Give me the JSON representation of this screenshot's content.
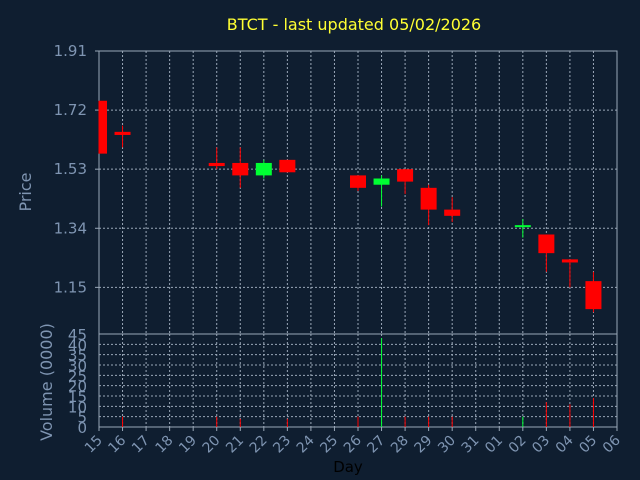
{
  "chart_data": {
    "type": "candlestick",
    "title": "BTCT - last updated 05/02/2026",
    "xlabel": "Day",
    "ylabel": "Price",
    "volume_label": "Volume (0000)",
    "x_ticks": [
      "15",
      "16",
      "17",
      "18",
      "19",
      "20",
      "21",
      "22",
      "23",
      "24",
      "25",
      "26",
      "27",
      "28",
      "29",
      "30",
      "31",
      "01",
      "02",
      "03",
      "04",
      "05",
      "06"
    ],
    "price_ticks": [
      "1.91",
      "1.72",
      "1.53",
      "1.34",
      "1.15"
    ],
    "price_range": [
      1.0,
      1.91
    ],
    "volume_ticks": [
      "45",
      "40",
      "35",
      "30",
      "25",
      "20",
      "15",
      "10",
      "5",
      "0"
    ],
    "volume_range": [
      0,
      45
    ],
    "grid": true,
    "colors": {
      "background": "#0f1e30",
      "grid": "#9aa8b8",
      "axis_text": "#7f95b2",
      "title": "#ffff33",
      "up": "#00ff33",
      "down": "#ff0000"
    },
    "candles": [
      {
        "day": "15",
        "open": 1.75,
        "high": 1.75,
        "low": 1.58,
        "close": 1.58,
        "volume": 0
      },
      {
        "day": "16",
        "open": 1.65,
        "high": 1.67,
        "low": 1.6,
        "close": 1.64,
        "volume": 5
      },
      {
        "day": "20",
        "open": 1.55,
        "high": 1.6,
        "low": 1.53,
        "close": 1.54,
        "volume": 5
      },
      {
        "day": "21",
        "open": 1.55,
        "high": 1.6,
        "low": 1.47,
        "close": 1.51,
        "volume": 4
      },
      {
        "day": "22",
        "open": 1.51,
        "high": 1.56,
        "low": 1.5,
        "close": 1.55,
        "volume": 0
      },
      {
        "day": "23",
        "open": 1.56,
        "high": 1.56,
        "low": 1.52,
        "close": 1.52,
        "volume": 4
      },
      {
        "day": "26",
        "open": 1.51,
        "high": 1.51,
        "low": 1.46,
        "close": 1.47,
        "volume": 5
      },
      {
        "day": "27",
        "open": 1.48,
        "high": 1.51,
        "low": 1.41,
        "close": 1.5,
        "volume": 43
      },
      {
        "day": "28",
        "open": 1.53,
        "high": 1.53,
        "low": 1.45,
        "close": 1.49,
        "volume": 5
      },
      {
        "day": "29",
        "open": 1.47,
        "high": 1.48,
        "low": 1.35,
        "close": 1.4,
        "volume": 5
      },
      {
        "day": "30",
        "open": 1.4,
        "high": 1.44,
        "low": 1.36,
        "close": 1.38,
        "volume": 5
      },
      {
        "day": "02",
        "open": 1.35,
        "high": 1.37,
        "low": 1.31,
        "close": 1.35,
        "volume": 5
      },
      {
        "day": "03",
        "open": 1.32,
        "high": 1.32,
        "low": 1.2,
        "close": 1.26,
        "volume": 12
      },
      {
        "day": "04",
        "open": 1.24,
        "high": 1.24,
        "low": 1.15,
        "close": 1.23,
        "volume": 11
      },
      {
        "day": "05",
        "open": 1.17,
        "high": 1.2,
        "low": 1.07,
        "close": 1.08,
        "volume": 14
      }
    ]
  }
}
